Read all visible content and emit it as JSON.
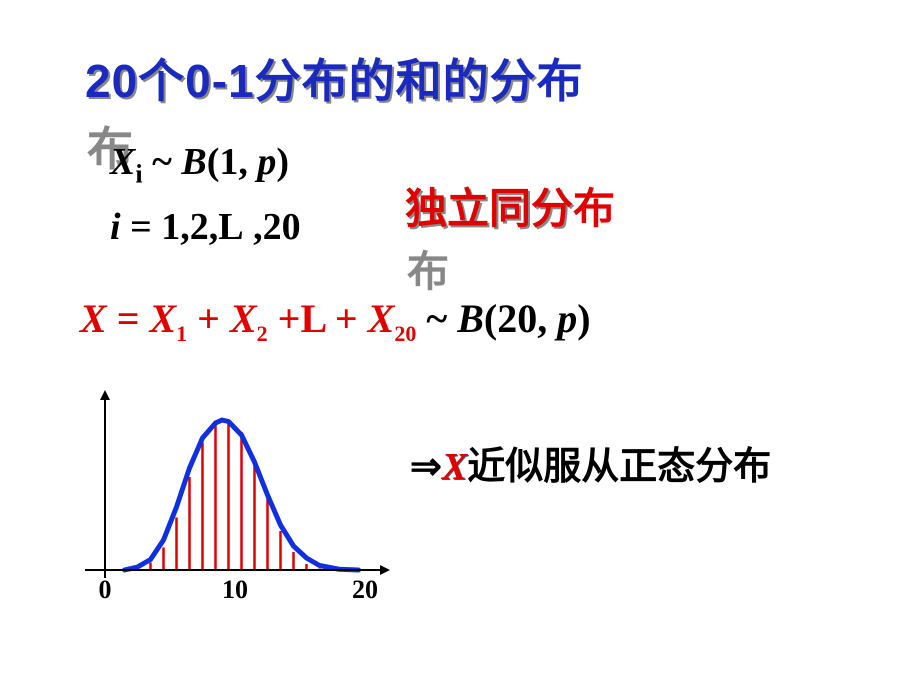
{
  "title": "20个0-1分布的和的分布",
  "formula_xi": "X",
  "formula_xi_sub": "i",
  "formula_xi_rest": " ~ B(1, p)",
  "formula_i": "i = 1,2,L  ,20",
  "iid_text": "独立同分布",
  "sum_X": "X",
  "sum_eq": " = ",
  "sum_X1": "X",
  "sum_1": "1",
  "sum_plus1": " + ",
  "sum_X2": "X",
  "sum_2": "2",
  "sum_plus2": " +L  + ",
  "sum_X20": "X",
  "sum_20": "20",
  "sum_tilde": " ~ ",
  "sum_B": "B(20, p)",
  "conclusion_arrow": "⇒",
  "conclusion_X": "X",
  "conclusion_text": "近似服从正态分布",
  "chart": {
    "xlim": [
      0,
      20
    ],
    "ticks": [
      0,
      10,
      20
    ],
    "curve_color": "#1030e0",
    "bar_color": "#e00000",
    "axis_color": "#000000",
    "bar_x": [
      0.5,
      1.5,
      2.5,
      3.5,
      4.5,
      5.5,
      6.5,
      7.5,
      8.5,
      9.5,
      10.5,
      11.5,
      12.5,
      13.5,
      14.5,
      15.5,
      16.5,
      17.5,
      18.5,
      19.5
    ],
    "bar_heights": [
      0,
      0,
      0.01,
      0.05,
      0.15,
      0.35,
      0.62,
      0.85,
      0.98,
      1.0,
      0.92,
      0.72,
      0.48,
      0.26,
      0.12,
      0.04,
      0.01,
      0,
      0,
      0
    ],
    "curve_pts": [
      [
        1.5,
        0
      ],
      [
        2.5,
        0.02
      ],
      [
        3.5,
        0.07
      ],
      [
        4.5,
        0.2
      ],
      [
        5.5,
        0.42
      ],
      [
        6.5,
        0.68
      ],
      [
        7.5,
        0.88
      ],
      [
        8.5,
        0.98
      ],
      [
        9.0,
        1.0
      ],
      [
        9.5,
        0.99
      ],
      [
        10.5,
        0.9
      ],
      [
        11.5,
        0.72
      ],
      [
        12.5,
        0.5
      ],
      [
        13.5,
        0.3
      ],
      [
        14.5,
        0.16
      ],
      [
        15.5,
        0.08
      ],
      [
        16.5,
        0.03
      ],
      [
        18.0,
        0.005
      ],
      [
        19.5,
        0
      ]
    ]
  }
}
